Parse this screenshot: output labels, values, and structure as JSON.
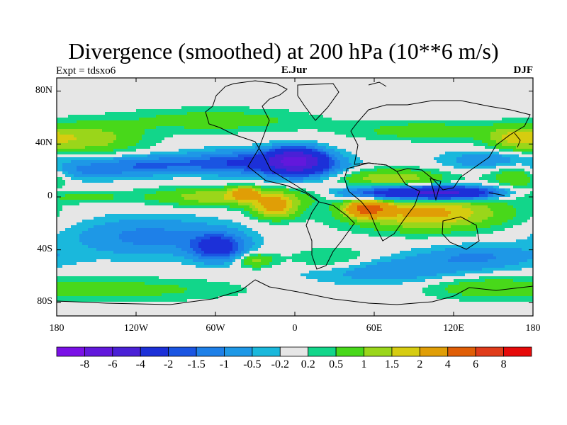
{
  "title": "Divergence (smoothed) at 200 hPa (10**6 m/s)",
  "expt_label": "Expt = tdsxo6",
  "subtitle": "E.Jur",
  "season": "DJF",
  "chart_data": {
    "type": "heatmap",
    "title": "Divergence (smoothed) at 200 hPa (10**6 m/s)",
    "variable": "Divergence (smoothed) at 200 hPa",
    "units": "10**6 m/s",
    "season": "DJF",
    "x_range": [
      -180,
      180
    ],
    "y_range": [
      -90,
      90
    ],
    "x_ticks": [
      {
        "value": -180,
        "label": "180"
      },
      {
        "value": -120,
        "label": "120W"
      },
      {
        "value": -60,
        "label": "60W"
      },
      {
        "value": 0,
        "label": "0"
      },
      {
        "value": 60,
        "label": "60E"
      },
      {
        "value": 120,
        "label": "120E"
      },
      {
        "value": 180,
        "label": "180"
      }
    ],
    "y_ticks": [
      {
        "value": 80,
        "label": "80N"
      },
      {
        "value": 40,
        "label": "40N"
      },
      {
        "value": 0,
        "label": "0"
      },
      {
        "value": -40,
        "label": "40S"
      },
      {
        "value": -80,
        "label": "80S"
      }
    ],
    "contour_levels": [
      {
        "label": "-8",
        "value": -8
      },
      {
        "label": "-6",
        "value": -6
      },
      {
        "label": "-4",
        "value": -4
      },
      {
        "label": "-2",
        "value": -2
      },
      {
        "label": "-1.5",
        "value": -1.5
      },
      {
        "label": "-1",
        "value": -1
      },
      {
        "label": "-0.5",
        "value": -0.5
      },
      {
        "label": "-0.2",
        "value": -0.2
      },
      {
        "label": "0.2",
        "value": 0.2
      },
      {
        "label": "0.5",
        "value": 0.5
      },
      {
        "label": "1",
        "value": 1
      },
      {
        "label": "1.5",
        "value": 1.5
      },
      {
        "label": "2",
        "value": 2
      },
      {
        "label": "4",
        "value": 4
      },
      {
        "label": "6",
        "value": 6
      },
      {
        "label": "8",
        "value": 8
      }
    ],
    "colorbar_colors": [
      "#7a10e6",
      "#6218dc",
      "#4a20d6",
      "#1c30d8",
      "#1a55e2",
      "#1e80e8",
      "#1e98e6",
      "#1ab8dc",
      "#e6e6e6",
      "#12d68a",
      "#48d81a",
      "#9ad61a",
      "#d6cc10",
      "#e09e06",
      "#e05e06",
      "#e03c1a",
      "#e60a0a"
    ],
    "fields": [
      {
        "lon": 0,
        "lat": 28,
        "sx": 14,
        "sy": 6,
        "amp": -5.5
      },
      {
        "lon": 10,
        "lat": 22,
        "sx": 22,
        "sy": 7,
        "amp": -1.5
      },
      {
        "lon": -40,
        "lat": 26,
        "sx": 30,
        "sy": 6,
        "amp": -2.0
      },
      {
        "lon": -110,
        "lat": 24,
        "sx": 28,
        "sy": 5,
        "amp": -1.4
      },
      {
        "lon": -160,
        "lat": 20,
        "sx": 24,
        "sy": 5,
        "amp": -1.0
      },
      {
        "lon": 150,
        "lat": 28,
        "sx": 25,
        "sy": 5,
        "amp": -1.0
      },
      {
        "lon": 110,
        "lat": 3,
        "sx": 28,
        "sy": 3.5,
        "amp": -5.0
      },
      {
        "lon": 60,
        "lat": 3,
        "sx": 22,
        "sy": 4,
        "amp": -1.5
      },
      {
        "lon": 100,
        "lat": -12,
        "sx": 40,
        "sy": 9,
        "amp": 2.2
      },
      {
        "lon": 55,
        "lat": -9,
        "sx": 10,
        "sy": 4,
        "amp": 4.5
      },
      {
        "lon": 70,
        "lat": 14,
        "sx": 30,
        "sy": 5,
        "amp": 1.4
      },
      {
        "lon": -50,
        "lat": 0,
        "sx": 40,
        "sy": 5,
        "amp": 1.5
      },
      {
        "lon": -38,
        "lat": 3,
        "sx": 6,
        "sy": 3,
        "amp": 2.5
      },
      {
        "lon": -15,
        "lat": -8,
        "sx": 12,
        "sy": 6,
        "amp": 2.2
      },
      {
        "lon": -160,
        "lat": 0,
        "sx": 25,
        "sy": 3,
        "amp": 0.6
      },
      {
        "lon": -160,
        "lat": 44,
        "sx": 30,
        "sy": 8,
        "amp": 1.4
      },
      {
        "lon": -60,
        "lat": 58,
        "sx": 50,
        "sy": 6,
        "amp": 0.8
      },
      {
        "lon": 100,
        "lat": 50,
        "sx": 40,
        "sy": 5,
        "amp": 0.8
      },
      {
        "lon": 168,
        "lat": 17,
        "sx": 14,
        "sy": 7,
        "amp": 1.2
      },
      {
        "lon": 165,
        "lat": 44,
        "sx": 14,
        "sy": 6,
        "amp": 1.0
      },
      {
        "lon": -110,
        "lat": -30,
        "sx": 40,
        "sy": 10,
        "amp": -1.2
      },
      {
        "lon": -58,
        "lat": -38,
        "sx": 14,
        "sy": 7,
        "amp": -2.5
      },
      {
        "lon": 140,
        "lat": -45,
        "sx": 30,
        "sy": 6,
        "amp": -1.0
      },
      {
        "lon": 70,
        "lat": -55,
        "sx": 45,
        "sy": 7,
        "amp": -1.0
      },
      {
        "lon": -130,
        "lat": -70,
        "sx": 60,
        "sy": 6,
        "amp": 0.7
      },
      {
        "lon": 140,
        "lat": -68,
        "sx": 30,
        "sy": 6,
        "amp": 0.7
      },
      {
        "lon": -30,
        "lat": -48,
        "sx": 10,
        "sy": 4,
        "amp": 1.2
      },
      {
        "lon": 30,
        "lat": -48,
        "sx": 25,
        "sy": 6,
        "amp": 0.8
      }
    ]
  }
}
